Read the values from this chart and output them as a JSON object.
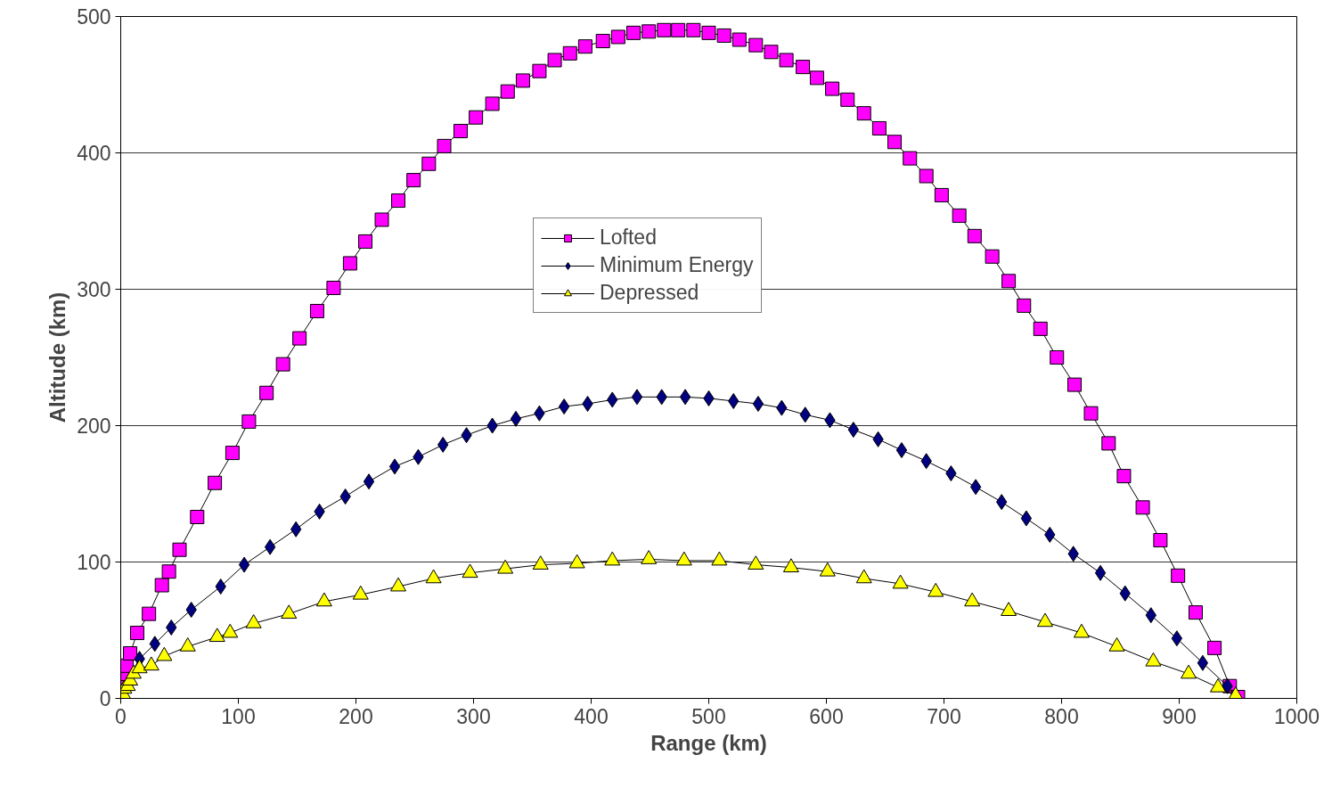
{
  "chart_data": {
    "type": "line",
    "xlabel": "Range (km)",
    "ylabel": "Altitude (km)",
    "xlim": [
      0,
      1000
    ],
    "ylim": [
      0,
      500
    ],
    "xticks": [
      0,
      100,
      200,
      300,
      400,
      500,
      600,
      700,
      800,
      900,
      1000
    ],
    "yticks": [
      0,
      100,
      200,
      300,
      400,
      500
    ],
    "grid": "y",
    "legend": "top",
    "series": [
      {
        "name": "Lofted",
        "color": "#ff00ff",
        "marker": "square",
        "x": [
          0,
          2,
          3,
          5,
          8,
          14,
          24,
          35,
          41,
          50,
          65,
          80,
          95,
          109,
          124,
          138,
          152,
          167,
          181,
          195,
          208,
          222,
          236,
          249,
          262,
          275,
          289,
          302,
          316,
          329,
          342,
          356,
          369,
          382,
          395,
          410,
          423,
          436,
          449,
          462,
          474,
          487,
          500,
          513,
          526,
          540,
          553,
          566,
          580,
          592,
          605,
          618,
          632,
          645,
          658,
          671,
          685,
          698,
          713,
          726,
          741,
          755,
          768,
          782,
          796,
          811,
          825,
          840,
          853,
          869,
          884,
          899,
          914,
          930,
          943,
          950
        ],
        "values": [
          3,
          12,
          18,
          24,
          33,
          48,
          62,
          83,
          93,
          109,
          133,
          158,
          180,
          203,
          224,
          245,
          264,
          284,
          301,
          319,
          335,
          351,
          365,
          380,
          392,
          405,
          416,
          426,
          436,
          445,
          453,
          460,
          468,
          473,
          478,
          482,
          485,
          488,
          489,
          490,
          490,
          490,
          488,
          486,
          483,
          479,
          474,
          468,
          463,
          455,
          447,
          439,
          429,
          418,
          408,
          396,
          383,
          369,
          354,
          339,
          324,
          306,
          288,
          271,
          250,
          230,
          209,
          187,
          163,
          140,
          116,
          90,
          63,
          37,
          9,
          1
        ]
      },
      {
        "name": "Minimum Energy",
        "color": "#000080",
        "marker": "diamond",
        "x": [
          0,
          16,
          29,
          43,
          60,
          85,
          105,
          127,
          149,
          169,
          191,
          211,
          233,
          253,
          274,
          294,
          316,
          336,
          356,
          377,
          397,
          418,
          439,
          460,
          480,
          500,
          521,
          542,
          562,
          582,
          603,
          623,
          644,
          664,
          685,
          706,
          727,
          749,
          770,
          790,
          810,
          833,
          854,
          876,
          898,
          920,
          941,
          948
        ],
        "values": [
          5,
          29,
          40,
          52,
          65,
          82,
          98,
          111,
          124,
          137,
          148,
          159,
          170,
          177,
          186,
          193,
          200,
          205,
          209,
          214,
          216,
          219,
          221,
          221,
          221,
          220,
          218,
          216,
          213,
          208,
          204,
          197,
          190,
          182,
          174,
          165,
          155,
          144,
          132,
          120,
          106,
          92,
          77,
          61,
          44,
          26,
          9,
          1
        ]
      },
      {
        "name": "Depressed",
        "color": "#ffff00",
        "marker": "triangle",
        "x": [
          0,
          2,
          3,
          6,
          8,
          11,
          16,
          26,
          37,
          57,
          82,
          93,
          113,
          143,
          173,
          204,
          236,
          266,
          297,
          327,
          357,
          388,
          418,
          449,
          479,
          509,
          540,
          570,
          601,
          632,
          663,
          693,
          724,
          755,
          786,
          817,
          847,
          878,
          908,
          933,
          948
        ],
        "values": [
          1,
          3,
          7,
          9,
          13,
          18,
          22,
          24,
          31,
          38,
          45,
          48,
          55,
          62,
          71,
          76,
          82,
          88,
          92,
          95,
          98,
          99,
          101,
          102,
          101,
          101,
          98,
          96,
          93,
          88,
          84,
          78,
          71,
          64,
          56,
          48,
          38,
          27,
          18,
          8,
          2
        ]
      }
    ]
  }
}
